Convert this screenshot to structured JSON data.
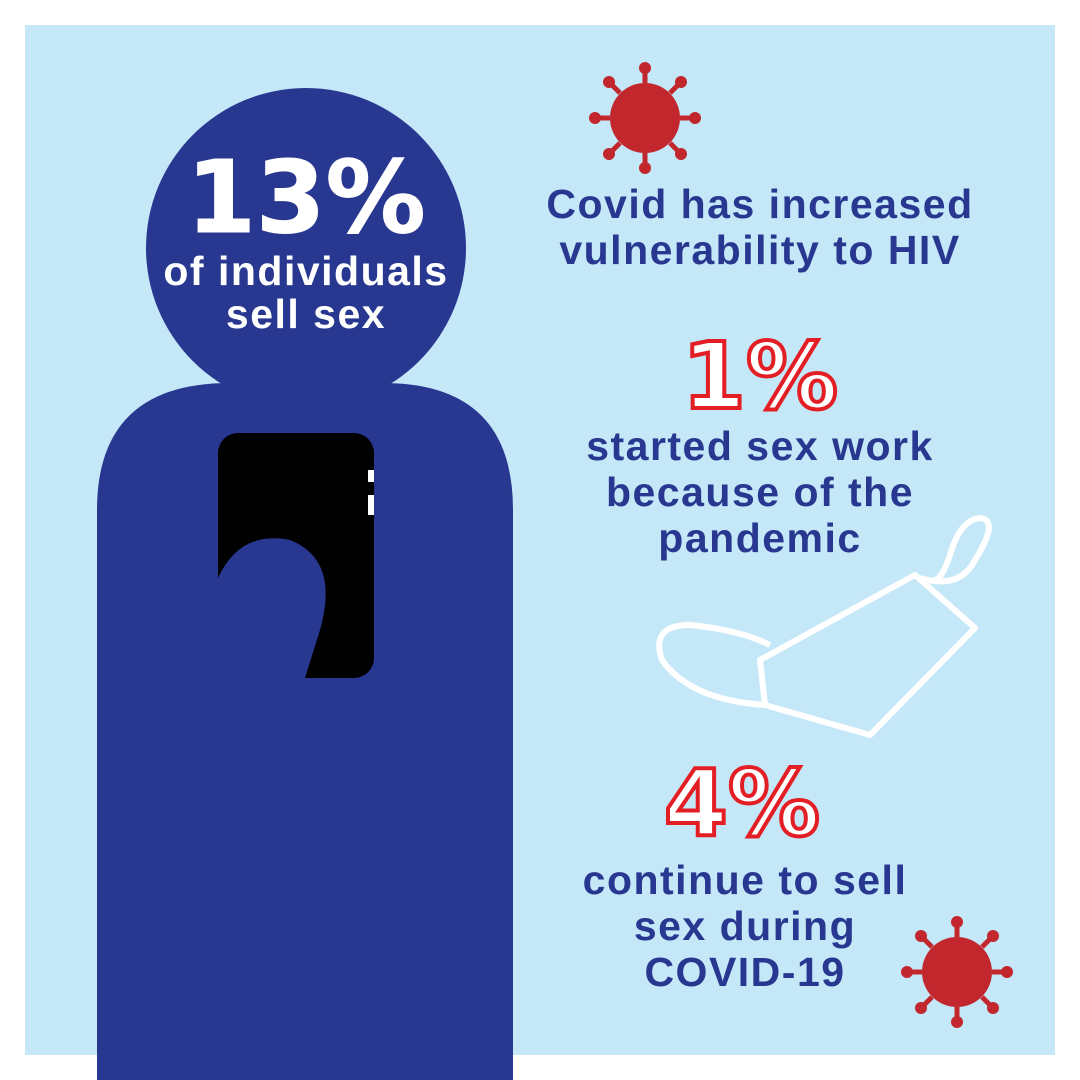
{
  "stats": [
    {
      "figure": "13%",
      "caption": [
        "of individuals",
        "sell sex"
      ]
    },
    {
      "figure": "1%",
      "caption": [
        "started sex work",
        "because of the",
        "pandemic"
      ]
    },
    {
      "figure": "4%",
      "caption": [
        "continue to sell",
        "sex during",
        "COVID-19"
      ]
    }
  ],
  "headline": [
    "Covid has increased",
    "vulnerability to HIV"
  ]
}
